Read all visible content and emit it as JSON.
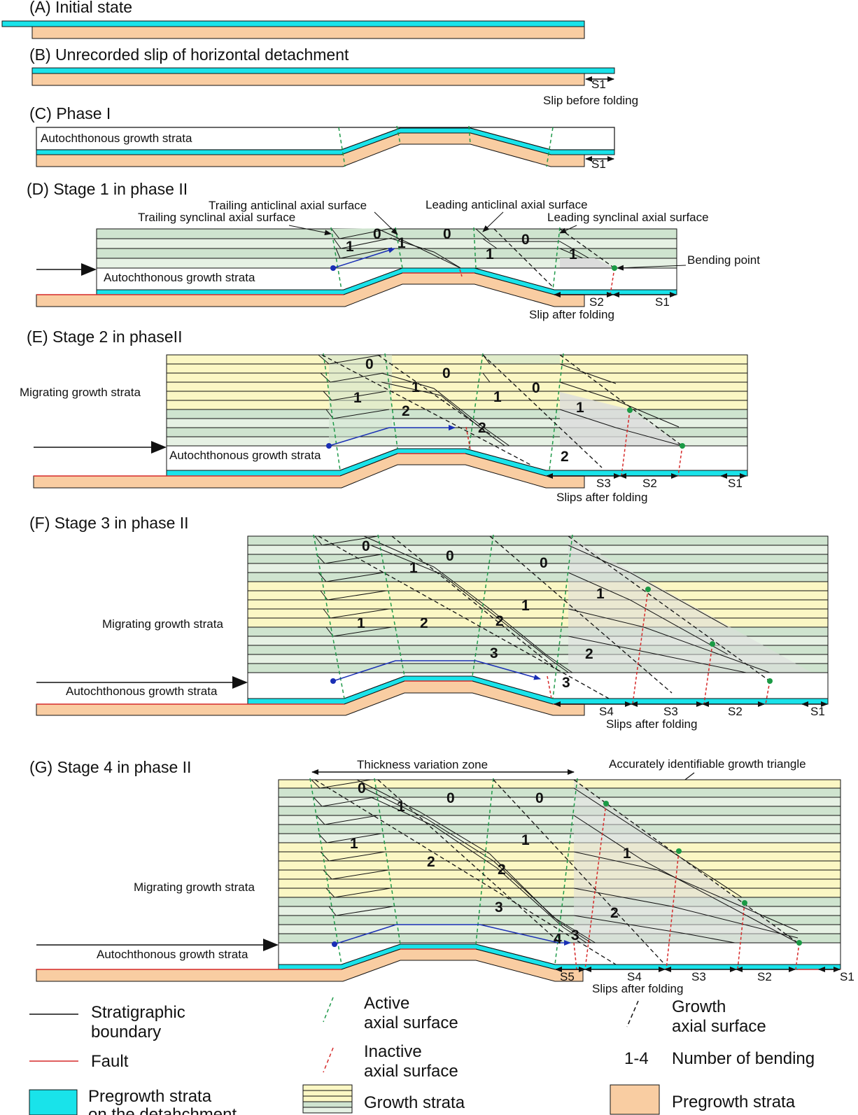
{
  "panels": {
    "a": {
      "title": "(A) Initial state"
    },
    "b": {
      "title": "(B) Unrecorded slip of horizontal detachment",
      "slip_label": "S1",
      "slip_caption": "Slip before folding"
    },
    "c": {
      "title": "(C) Phase I",
      "strata_label": "Autochthonous growth strata",
      "slip_label": "S1"
    },
    "d": {
      "title": "(D) Stage 1 in phase II",
      "trailing_anticlinal": "Trailing anticlinal axial surface",
      "trailing_synclinal": "Trailing synclinal axial surface",
      "leading_anticlinal": "Leading anticlinal axial surface",
      "leading_synclinal": "Leading synclinal axial surface",
      "bending_point": "Bending point",
      "strata_label": "Autochthonous growth strata",
      "slips": [
        "S2",
        "S1"
      ],
      "slip_caption": "Slip after folding",
      "numbers": [
        "0",
        "1",
        "1",
        "0",
        "0",
        "1",
        "1"
      ]
    },
    "e": {
      "title": "(E) Stage 2 in phaseII",
      "migrating": "Migrating growth strata",
      "autochthonous": "Autochthonous growth strata",
      "slips": [
        "S3",
        "S2",
        "S1"
      ],
      "slip_caption": "Slips after folding",
      "numbers": [
        "0",
        "0",
        "0",
        "1",
        "1",
        "1",
        "1",
        "2",
        "2",
        "2"
      ]
    },
    "f": {
      "title": "(F) Stage 3 in phase II",
      "migrating": "Migrating growth strata",
      "autochthonous": "Autochthonous growth strata",
      "slips": [
        "S4",
        "S3",
        "S2",
        "S1"
      ],
      "slip_caption": "Slips after folding",
      "numbers": [
        "0",
        "0",
        "0",
        "1",
        "1",
        "1",
        "1",
        "2",
        "2",
        "2",
        "3",
        "3"
      ]
    },
    "g": {
      "title": "(G) Stage 4 in phase II",
      "thickness_zone": "Thickness variation zone",
      "growth_triangle": "Accurately identifiable growth triangle",
      "migrating": "Migrating growth strata",
      "autochthonous": "Autochthonous growth strata",
      "slips": [
        "S5",
        "S4",
        "S3",
        "S2",
        "S1"
      ],
      "slip_caption": "Slips after folding",
      "numbers": [
        "0",
        "0",
        "0",
        "1",
        "1",
        "1",
        "1",
        "2",
        "2",
        "2",
        "3",
        "3",
        "4"
      ]
    }
  },
  "legend": {
    "stratigraphic": [
      "Stratigraphic",
      "boundary"
    ],
    "fault": "Fault",
    "pregrowth_detachment": [
      "Pregrowth strata",
      "on the detahchment"
    ],
    "active": [
      "Active",
      "axial surface"
    ],
    "inactive": [
      "Inactive",
      "axial surface"
    ],
    "growth_strata": "Growth strata",
    "growth_axial": [
      "Growth",
      "axial surface"
    ],
    "bending_range": "1-4",
    "bending_text": "Number of bending",
    "pregrowth": "Pregrowth strata"
  },
  "colors": {
    "cyan": "#19e3ea",
    "pregrowth": "#f9cda2",
    "growth_yellow": "#fbf7c4",
    "growth_green": "#cfe4cf",
    "growth_light": "#e6f1e4",
    "fault": "#d62a2a",
    "active_axial": "#1f9a4a",
    "bending_point": "#1a9a44",
    "arrow_blue": "#1a2fb5"
  }
}
